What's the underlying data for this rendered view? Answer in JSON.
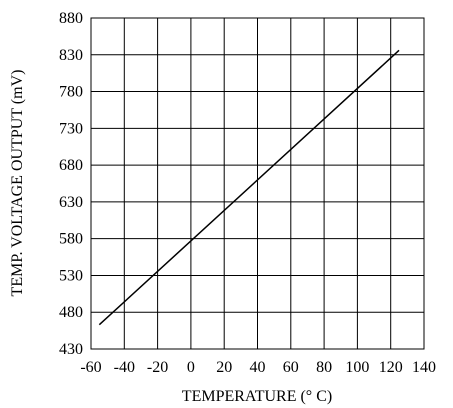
{
  "chart_data": {
    "type": "line",
    "xlabel": "TEMPERATURE (° C)",
    "ylabel": "TEMP. VOLTAGE OUTPUT (mV)",
    "xlim": [
      -60,
      140
    ],
    "ylim": [
      430,
      880
    ],
    "x_ticks": [
      "-60",
      "-40",
      "-20",
      "0",
      "20",
      "40",
      "60",
      "80",
      "100",
      "120",
      "140"
    ],
    "y_ticks": [
      "430",
      "480",
      "530",
      "580",
      "630",
      "680",
      "730",
      "780",
      "830",
      "880"
    ],
    "grid": true,
    "series": [
      {
        "x": [
          -55,
          125
        ],
        "y": [
          463,
          836
        ],
        "color": "#000000"
      }
    ]
  }
}
